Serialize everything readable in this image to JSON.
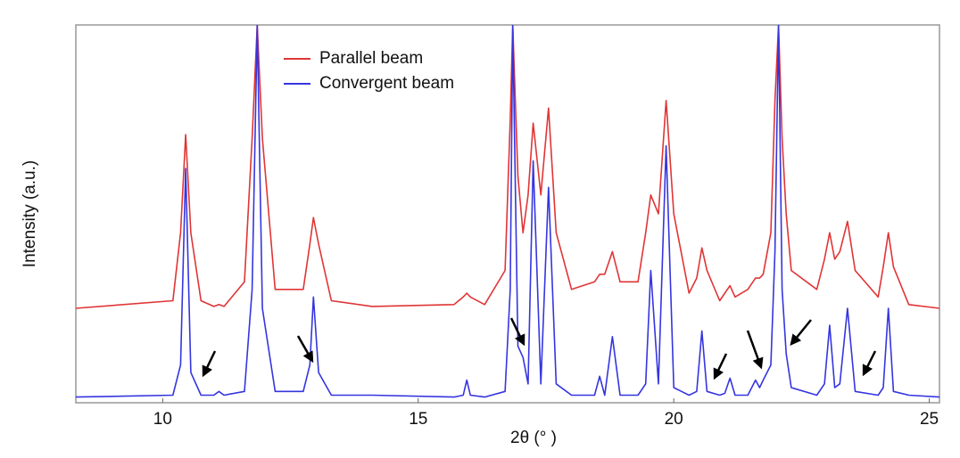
{
  "chart_data": {
    "type": "line",
    "xlabel": "2θ (° )",
    "ylabel": "Intensity (a.u.)",
    "xlim": [
      8.3,
      25.2
    ],
    "xticks": [
      10,
      15,
      20,
      25
    ],
    "ylim": [
      0,
      100
    ],
    "x": [
      8.3,
      10.2,
      10.35,
      10.45,
      10.55,
      10.75,
      11.0,
      11.1,
      11.2,
      11.6,
      11.75,
      11.85,
      11.95,
      12.2,
      12.75,
      12.88,
      12.95,
      13.05,
      13.3,
      14.1,
      15.7,
      15.88,
      15.95,
      16.02,
      16.3,
      16.7,
      16.8,
      16.85,
      16.95,
      17.05,
      17.15,
      17.25,
      17.4,
      17.55,
      17.7,
      18.0,
      18.45,
      18.55,
      18.65,
      18.8,
      18.95,
      19.3,
      19.45,
      19.55,
      19.7,
      19.85,
      20.0,
      20.3,
      20.45,
      20.55,
      20.65,
      20.9,
      21.0,
      21.1,
      21.2,
      21.45,
      21.6,
      21.68,
      21.75,
      21.9,
      21.98,
      22.05,
      22.12,
      22.2,
      22.3,
      22.8,
      22.95,
      23.05,
      23.15,
      23.25,
      23.4,
      23.55,
      24.0,
      24.1,
      24.2,
      24.3,
      24.6,
      25.2
    ],
    "series": [
      {
        "name": "Parallel beam",
        "color": "#e03535",
        "values": [
          25,
          27,
          45,
          71,
          45,
          27,
          25.5,
          26,
          25.5,
          32,
          70,
          100,
          70,
          30,
          30,
          42,
          49,
          42,
          27,
          25.5,
          26,
          28,
          29,
          28,
          26,
          35,
          75,
          100,
          60,
          45,
          55,
          74,
          55,
          78,
          45,
          30,
          32,
          34,
          34,
          40,
          32,
          32,
          45,
          55,
          50,
          80,
          50,
          29,
          33,
          41,
          35,
          27,
          29,
          31,
          28,
          30,
          33,
          33,
          34,
          45,
          80,
          100,
          70,
          50,
          35,
          30,
          38,
          45,
          38,
          40,
          48,
          35,
          28,
          36,
          45,
          36,
          26,
          25
        ]
      },
      {
        "name": "Convergent beam",
        "color": "#3535e0",
        "values": [
          1.5,
          2,
          10,
          62,
          8,
          2,
          2,
          3,
          2,
          3,
          30,
          100,
          25,
          3,
          3,
          10,
          28,
          8,
          2,
          2,
          1.5,
          2,
          6,
          2,
          1.5,
          3,
          30,
          100,
          15,
          12,
          5,
          64,
          5,
          57,
          5,
          2,
          2,
          7,
          2,
          17.5,
          2,
          2,
          5,
          35,
          5,
          68,
          4,
          2,
          3,
          19,
          3,
          2,
          2.5,
          6.5,
          2,
          2,
          6,
          4,
          6,
          10,
          40,
          100,
          30,
          13,
          4,
          2,
          5,
          20.5,
          4,
          5,
          25,
          3,
          2,
          4,
          25,
          3,
          2,
          1.5
        ]
      }
    ]
  }
}
